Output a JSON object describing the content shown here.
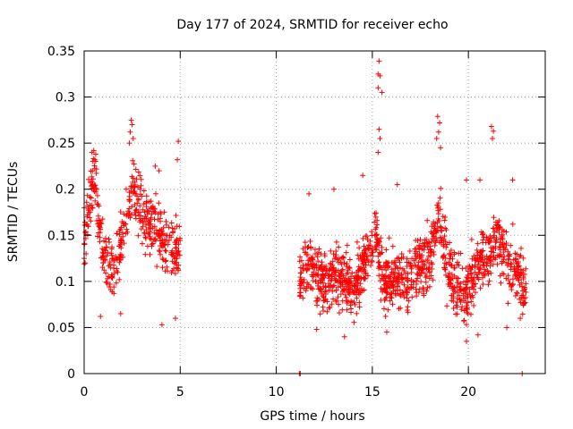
{
  "chart_data": {
    "type": "scatter",
    "title": "Day 177 of 2024, SRMTID for receiver echo",
    "xlabel": "GPS time / hours",
    "ylabel": "SRMTID / TECUs",
    "xlim": [
      0,
      24
    ],
    "ylim": [
      0,
      0.35
    ],
    "x_ticks": [
      0,
      5,
      10,
      15,
      20
    ],
    "x_tick_labels": [
      "0",
      "5",
      "10",
      "15",
      "20"
    ],
    "y_ticks": [
      0,
      0.05,
      0.1,
      0.15,
      0.2,
      0.25,
      0.3,
      0.35
    ],
    "y_tick_labels": [
      "0",
      "0.05",
      "0.1",
      "0.15",
      "0.2",
      "0.25",
      "0.3",
      "0.35"
    ],
    "grid": true,
    "marker": "plus",
    "marker_color": "#ff0000",
    "series": [
      {
        "name": "SRMTID",
        "segments": [
          {
            "x_start": 0.0,
            "x_end": 5.0,
            "base": [
              [
                0.0,
                0.15
              ],
              [
                0.5,
                0.21
              ],
              [
                1.0,
                0.13
              ],
              [
                1.6,
                0.11
              ],
              [
                2.1,
                0.16
              ],
              [
                2.5,
                0.2
              ],
              [
                3.2,
                0.17
              ],
              [
                3.7,
                0.16
              ],
              [
                4.2,
                0.14
              ],
              [
                4.9,
                0.13
              ]
            ],
            "spread": 0.035,
            "count": 430
          },
          {
            "x_start": 11.2,
            "x_end": 16.0,
            "base": [
              [
                11.2,
                0.11
              ],
              [
                11.8,
                0.12
              ],
              [
                12.5,
                0.1
              ],
              [
                13.2,
                0.11
              ],
              [
                14.0,
                0.09
              ],
              [
                14.6,
                0.12
              ],
              [
                15.2,
                0.15
              ],
              [
                15.6,
                0.1
              ],
              [
                16.0,
                0.1
              ]
            ],
            "spread": 0.035,
            "count": 520
          },
          {
            "x_start": 16.0,
            "x_end": 23.0,
            "base": [
              [
                16.0,
                0.1
              ],
              [
                16.8,
                0.1
              ],
              [
                17.5,
                0.12
              ],
              [
                18.0,
                0.12
              ],
              [
                18.5,
                0.17
              ],
              [
                19.0,
                0.11
              ],
              [
                19.8,
                0.08
              ],
              [
                20.5,
                0.12
              ],
              [
                21.0,
                0.13
              ],
              [
                21.5,
                0.15
              ],
              [
                22.0,
                0.12
              ],
              [
                22.5,
                0.11
              ],
              [
                23.0,
                0.09
              ]
            ],
            "spread": 0.035,
            "count": 700
          }
        ],
        "points": [
          [
            15.35,
            0.339
          ],
          [
            15.3,
            0.325
          ],
          [
            15.4,
            0.323
          ],
          [
            15.3,
            0.31
          ],
          [
            15.5,
            0.305
          ],
          [
            15.35,
            0.265
          ],
          [
            15.4,
            0.255
          ],
          [
            15.3,
            0.24
          ],
          [
            2.45,
            0.275
          ],
          [
            2.5,
            0.27
          ],
          [
            2.4,
            0.262
          ],
          [
            2.55,
            0.255
          ],
          [
            2.35,
            0.25
          ],
          [
            18.4,
            0.279
          ],
          [
            18.5,
            0.272
          ],
          [
            18.45,
            0.262
          ],
          [
            18.35,
            0.255
          ],
          [
            18.55,
            0.245
          ],
          [
            21.2,
            0.268
          ],
          [
            21.3,
            0.263
          ],
          [
            21.25,
            0.255
          ],
          [
            4.9,
            0.252
          ],
          [
            4.85,
            0.232
          ],
          [
            0.5,
            0.242
          ],
          [
            0.6,
            0.238
          ],
          [
            0.55,
            0.232
          ],
          [
            11.7,
            0.195
          ],
          [
            13.0,
            0.2
          ],
          [
            14.5,
            0.215
          ],
          [
            16.3,
            0.205
          ],
          [
            19.9,
            0.21
          ],
          [
            20.6,
            0.21
          ],
          [
            22.3,
            0.21
          ],
          [
            3.7,
            0.225
          ],
          [
            3.9,
            0.22
          ],
          [
            4.05,
            0.053
          ],
          [
            4.75,
            0.06
          ],
          [
            0.85,
            0.062
          ],
          [
            1.9,
            0.065
          ],
          [
            12.1,
            0.048
          ],
          [
            13.55,
            0.04
          ],
          [
            15.75,
            0.045
          ],
          [
            19.9,
            0.035
          ],
          [
            20.5,
            0.042
          ],
          [
            22.0,
            0.05
          ],
          [
            22.7,
            0.06
          ],
          [
            11.2,
            0.0
          ],
          [
            11.25,
            0.0
          ],
          [
            22.8,
            0.0
          ],
          [
            0.0,
            0.125
          ],
          [
            0.05,
            0.12
          ],
          [
            0.1,
            0.13
          ],
          [
            0.0,
            0.18
          ],
          [
            0.15,
            0.17
          ],
          [
            0.2,
            0.16
          ]
        ]
      }
    ]
  }
}
